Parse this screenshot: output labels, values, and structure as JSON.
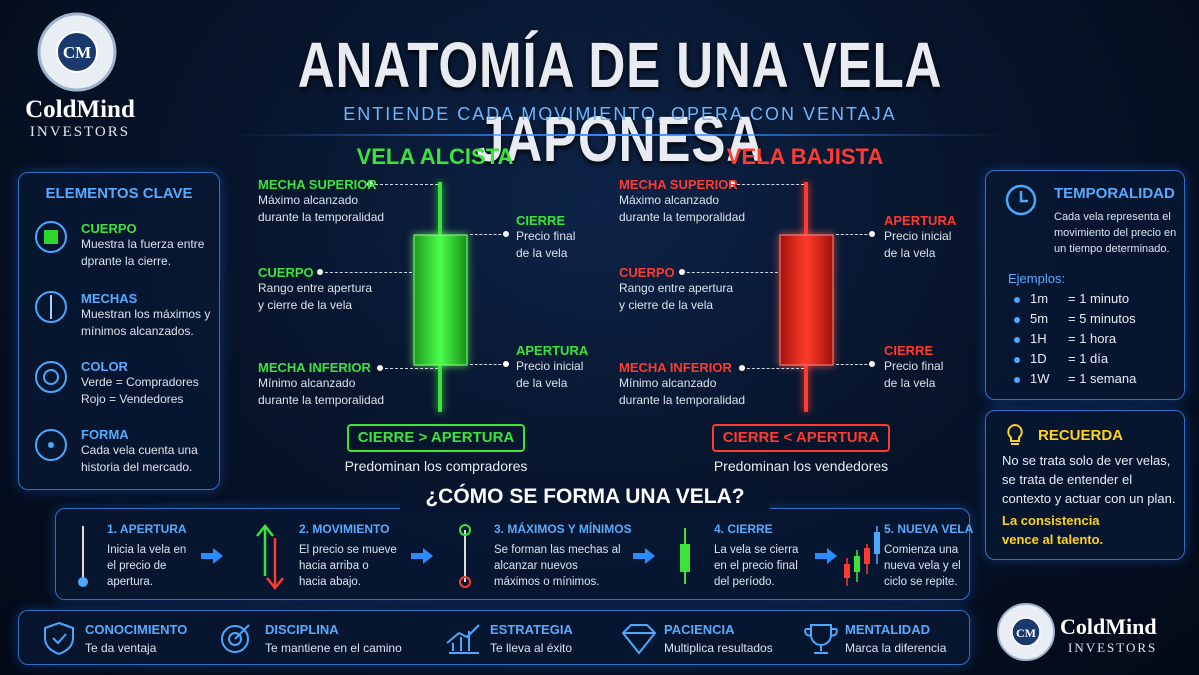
{
  "brand": {
    "logo": "CM",
    "name": "ColdMind",
    "sub": "INVESTORS"
  },
  "header": {
    "title": "ANATOMÍA DE UNA VELA JAPONESA",
    "subtitle": "ENTIENDE CADA MOVIMIENTO, OPERA CON VENTAJA"
  },
  "elements": {
    "title": "ELEMENTOS CLAVE",
    "items": [
      {
        "title": "CUERPO",
        "text": "Muestra la fuerza entre dprante la cierre."
      },
      {
        "title": "MECHAS",
        "text": "Muestran los máximos y mínimos alcanzados."
      },
      {
        "title": "COLOR",
        "text": "Verde = Compradores Rojo = Vendedores"
      },
      {
        "title": "FORMA",
        "text": "Cada vela cuenta una historia del mercado."
      }
    ]
  },
  "bullish": {
    "title": "VELA ALCISTA",
    "upper": {
      "title": "MECHA SUPERIOR",
      "text": "Máximo alcanzado durante la temporalidad"
    },
    "body": {
      "title": "CUERPO",
      "text": "Rango entre apertura y cierre de la vela"
    },
    "lower": {
      "title": "MECHA INFERIOR",
      "text": "Mínimo alcanzado durante la temporalidad"
    },
    "top": {
      "title": "CIERRE",
      "text": "Precio final de la vela"
    },
    "bottom": {
      "title": "APERTURA",
      "text": "Precio inicial de la vela"
    },
    "rule": "CIERRE > APERTURA",
    "note": "Predominan los compradores"
  },
  "bearish": {
    "title": "VELA BAJISTA",
    "upper": {
      "title": "MECHA SUPERIOR",
      "text": "Máximo alcanzado durante la temporalidad"
    },
    "body": {
      "title": "CUERPO",
      "text": "Rango entre apertura y cierre de la vela"
    },
    "lower": {
      "title": "MECHA INFERIOR",
      "text": "Mínimo alcanzado durante la temporalidad"
    },
    "top": {
      "title": "APERTURA",
      "text": "Precio inicial de la vela"
    },
    "bottom": {
      "title": "CIERRE",
      "text": "Precio final de la vela"
    },
    "rule": "CIERRE < APERTURA",
    "note": "Predominan los vendedores"
  },
  "timeframe": {
    "title": "TEMPORALIDAD",
    "text": "Cada vela representa el movimiento del precio en un tiempo determinado.",
    "examples_title": "Ejemplos:",
    "examples": [
      {
        "code": "1m",
        "meaning": "= 1 minuto"
      },
      {
        "code": "5m",
        "meaning": "= 5 minutos"
      },
      {
        "code": "1H",
        "meaning": "= 1 hora"
      },
      {
        "code": "1D",
        "meaning": "= 1 día"
      },
      {
        "code": "1W",
        "meaning": "= 1 semana"
      }
    ]
  },
  "remember": {
    "title": "RECUERDA",
    "text": "No se trata solo de ver velas, se trata de entender el contexto y actuar con un plan.",
    "highlight": "La consistencia vence al talento."
  },
  "steps": {
    "title": "¿CÓMO SE FORMA UNA VELA?",
    "items": [
      {
        "title": "1. APERTURA",
        "text": "Inicia la vela en el precio de apertura."
      },
      {
        "title": "2. MOVIMIENTO",
        "text": "El precio se mueve hacia arriba o hacia abajo."
      },
      {
        "title": "3. MÁXIMOS Y MÍNIMOS",
        "text": "Se forman las mechas al alcanzar nuevos máximos o mínimos."
      },
      {
        "title": "4. CIERRE",
        "text": "La vela se cierra en el precio final del período."
      },
      {
        "title": "5. NUEVA VELA",
        "text": "Comienza una nueva vela y el ciclo se repite."
      }
    ]
  },
  "values": [
    {
      "title": "CONOCIMIENTO",
      "text": "Te da ventaja"
    },
    {
      "title": "DISCIPLINA",
      "text": "Te mantiene en el camino"
    },
    {
      "title": "ESTRATEGIA",
      "text": "Te lleva al éxito"
    },
    {
      "title": "PACIENCIA",
      "text": "Multiplica resultados"
    },
    {
      "title": "MENTALIDAD",
      "text": "Marca la diferencia"
    }
  ]
}
